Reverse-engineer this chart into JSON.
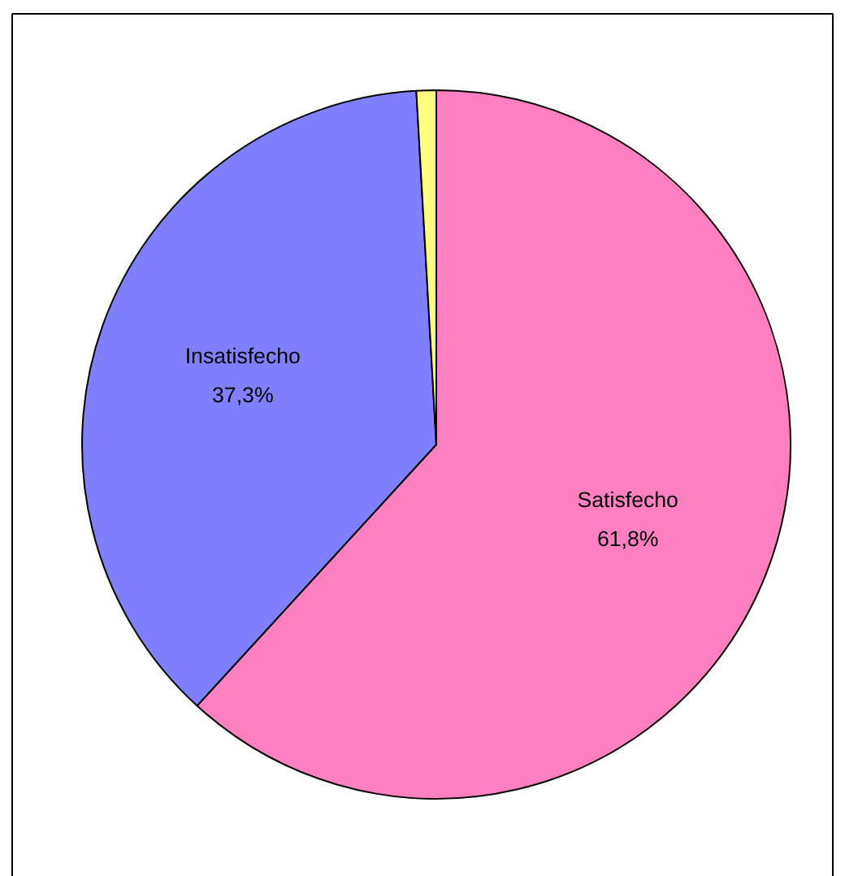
{
  "chart_data": {
    "type": "pie",
    "categories": [
      "Satisfecho",
      "Insatisfecho",
      null
    ],
    "values": [
      61.8,
      37.3,
      0.9
    ],
    "colors": [
      "#ff80c0",
      "#8080ff",
      "#ffff80"
    ],
    "value_labels": [
      "61,8%",
      "37,3%",
      null
    ]
  }
}
